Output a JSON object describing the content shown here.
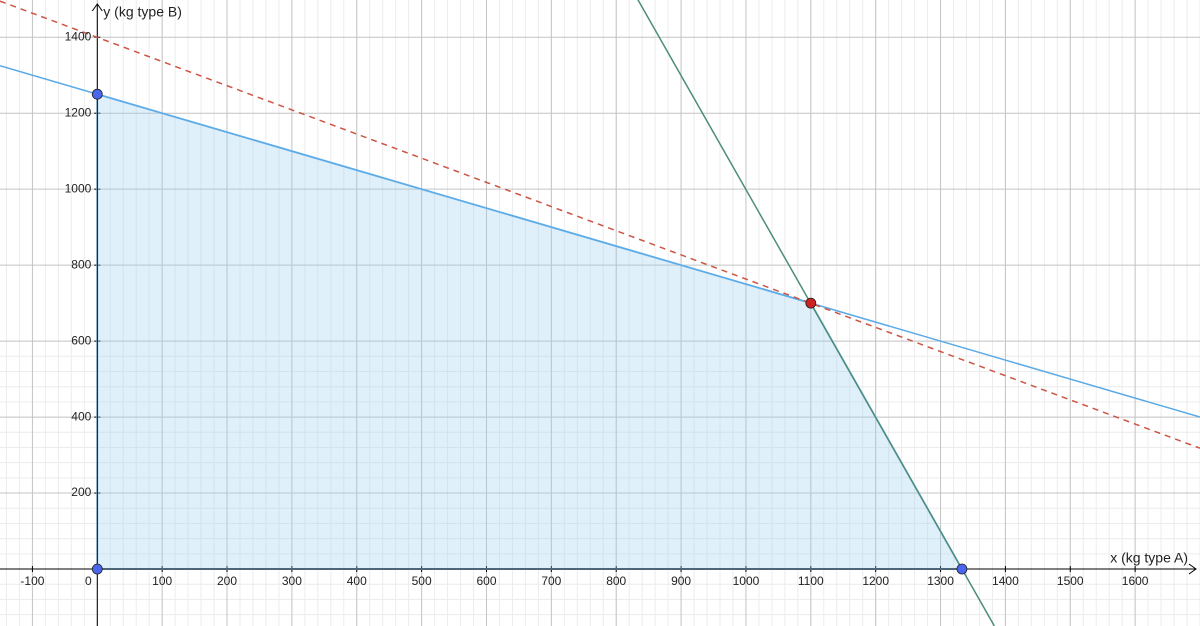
{
  "chart_data": {
    "type": "linear-program",
    "xlabel": "x (kg type A)",
    "ylabel": "y (kg type B)",
    "xlim": [
      -150,
      1700
    ],
    "ylim": [
      -150,
      1498
    ],
    "xticks": [
      -100,
      0,
      100,
      200,
      300,
      400,
      500,
      600,
      700,
      800,
      900,
      1000,
      1100,
      1200,
      1300,
      1400,
      1500,
      1600
    ],
    "yticks": [
      200,
      400,
      600,
      800,
      1000,
      1200,
      1400
    ],
    "grid": true,
    "minor_grid": true,
    "region": {
      "x": [
        0,
        0,
        1100,
        1333
      ],
      "y": [
        0,
        1250,
        700,
        0
      ],
      "color": "#99ccf0"
    },
    "lines": [
      {
        "x": [
          -150,
          1700
        ],
        "y": [
          1325,
          400
        ],
        "color": "#5aaae8",
        "dashed": false
      },
      {
        "x": [
          833,
          1383
        ],
        "y": [
          1500,
          -150
        ],
        "color": "#4e8c7a",
        "dashed": false
      },
      {
        "x": [
          -150,
          1700
        ],
        "y": [
          1495,
          318
        ],
        "color": "#cc5544",
        "dashed": true
      }
    ],
    "points": [
      {
        "x": 0,
        "y": 1250,
        "color": "#4a66ee"
      },
      {
        "x": 0,
        "y": 0,
        "color": "#4a66ee"
      },
      {
        "x": 1333,
        "y": 0,
        "color": "#4a66ee"
      },
      {
        "x": 1100,
        "y": 700,
        "color": "#cc2222"
      }
    ]
  }
}
